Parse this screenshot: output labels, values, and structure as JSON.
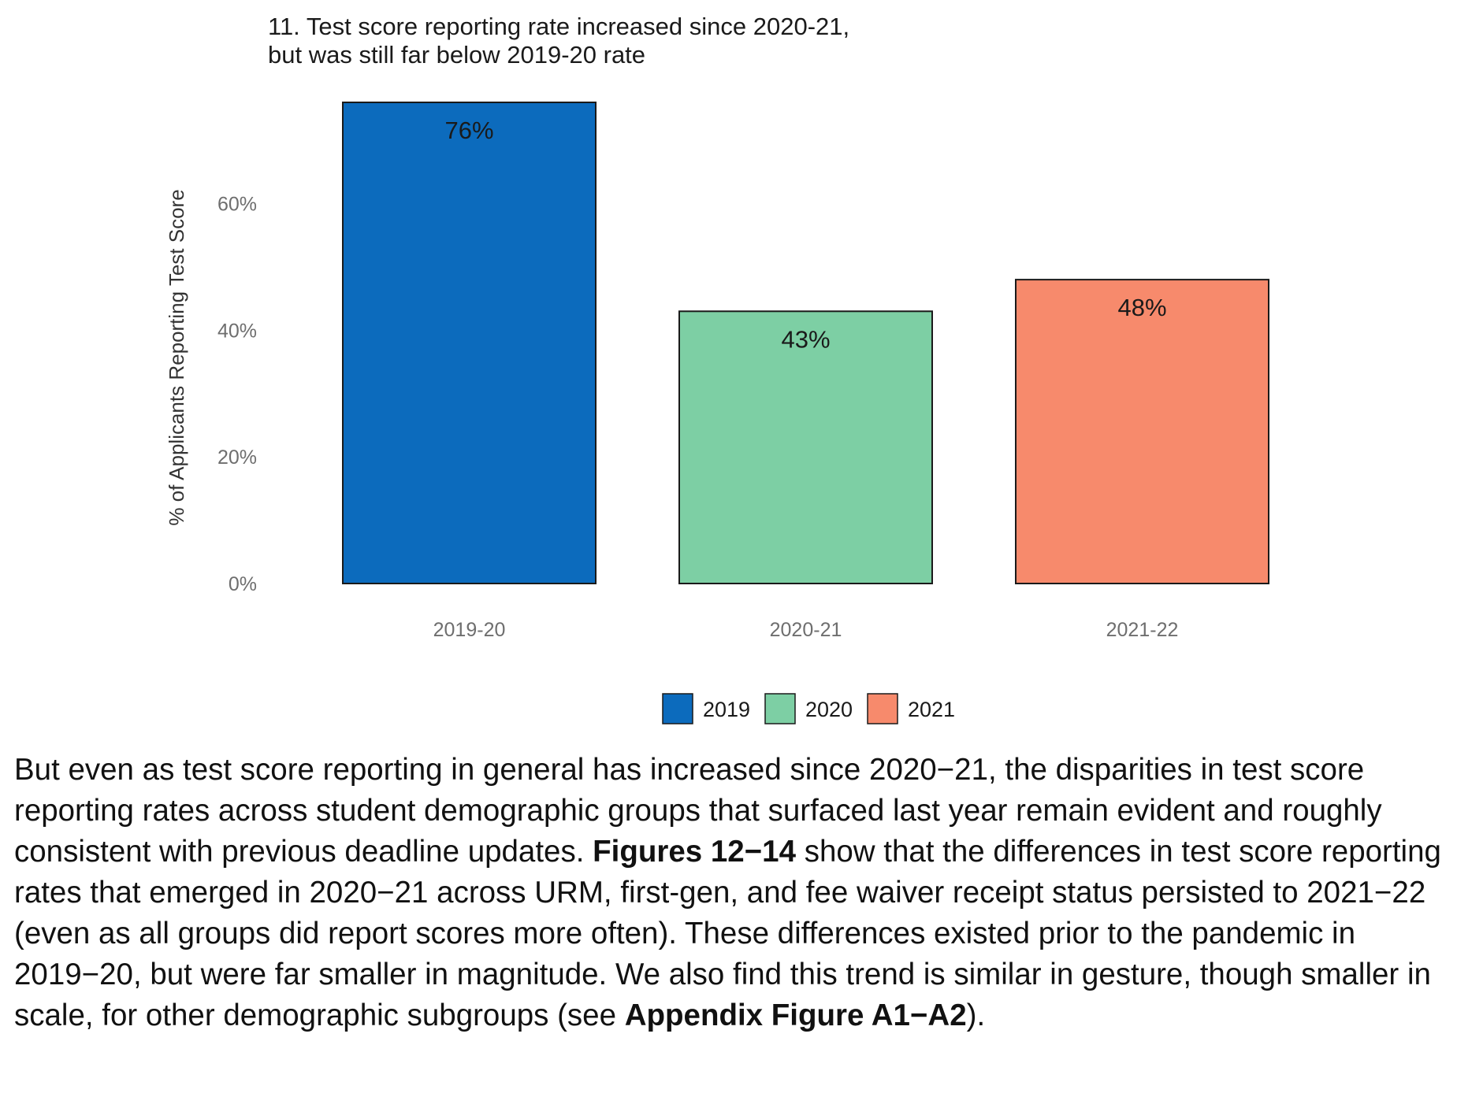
{
  "chart_data": {
    "type": "bar",
    "title_lines": [
      "11. Test score reporting rate increased since 2020-21,",
      "but was still far below 2019-20 rate"
    ],
    "ylabel": "% of Applicants Reporting Test Score",
    "xlabel": "",
    "categories": [
      "2019-20",
      "2020-21",
      "2021-22"
    ],
    "values": [
      76,
      43,
      48
    ],
    "data_labels": [
      "76%",
      "43%",
      "48%"
    ],
    "colors": [
      "#0c6bbd",
      "#7dcfa4",
      "#f78a6c"
    ],
    "yticks": [
      0,
      20,
      40,
      60
    ],
    "ytick_labels": [
      "0%",
      "20%",
      "40%",
      "60%"
    ],
    "ylim": [
      0,
      76
    ],
    "grid": false,
    "legend": {
      "placement": "bottom",
      "entries": [
        "2019",
        "2020",
        "2021"
      ]
    }
  },
  "body_text": {
    "p1": "But even as test score reporting in general has increased since 2020−21, the disparities in test score reporting rates across student demographic groups that surfaced last year remain evident and roughly consistent with previous deadline updates. ",
    "bold1": "Figures 12−14",
    "p2": " show that the differences in test score reporting rates that emerged in 2020−21 across URM, first-gen, and fee waiver receipt status persisted to 2021−22 (even as all groups did report scores more often). These differences existed prior to the pandemic in 2019−20, but were far smaller in magnitude. We also find this trend is similar in gesture, though smaller in scale, for other demographic subgroups (see ",
    "bold2": "Appendix Figure A1−A2",
    "p3": ")."
  }
}
